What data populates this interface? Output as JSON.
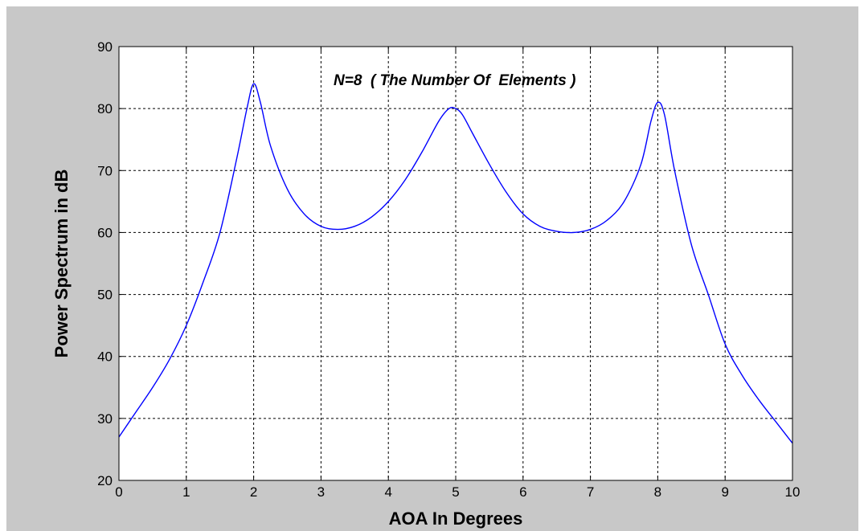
{
  "chart_data": {
    "type": "line",
    "title": "",
    "xlabel": "AOA In Degrees",
    "ylabel": "Power Spectrum in dB",
    "annotation": "N=8  ( The Number Of  Elements )",
    "xlim": [
      0,
      10
    ],
    "ylim": [
      20,
      90
    ],
    "xticks": [
      0,
      1,
      2,
      3,
      4,
      5,
      6,
      7,
      8,
      9,
      10
    ],
    "yticks": [
      20,
      30,
      40,
      50,
      60,
      70,
      80,
      90
    ],
    "grid": true,
    "grid_style": "dashed",
    "legend": false,
    "series": [
      {
        "color": "#0000ff",
        "x": [
          0.0,
          0.25,
          0.5,
          0.75,
          1.0,
          1.25,
          1.5,
          1.75,
          1.9,
          2.0,
          2.1,
          2.25,
          2.5,
          2.75,
          3.0,
          3.25,
          3.5,
          3.75,
          4.0,
          4.25,
          4.5,
          4.75,
          4.9,
          5.0,
          5.1,
          5.25,
          5.5,
          5.75,
          6.0,
          6.25,
          6.5,
          6.75,
          7.0,
          7.25,
          7.5,
          7.75,
          7.9,
          8.0,
          8.1,
          8.25,
          8.5,
          8.75,
          9.0,
          9.25,
          9.5,
          9.75,
          10.0
        ],
        "y": [
          27,
          31,
          35,
          39.5,
          45,
          52,
          60,
          72,
          80,
          84,
          81,
          74,
          67,
          63,
          61,
          60.5,
          61,
          62.5,
          65,
          68.5,
          73,
          78,
          80,
          80,
          79,
          76,
          71,
          66.5,
          63,
          61,
          60.2,
          60,
          60.5,
          62,
          65,
          71,
          78,
          81,
          79,
          70,
          58,
          50,
          42,
          37,
          33,
          29.5,
          26
        ]
      }
    ]
  },
  "colors": {
    "background": "#ffffff",
    "frame_background": "#c8c8c8",
    "plot_background": "#ffffff",
    "line": "#0000ff",
    "grid": "#000000"
  }
}
